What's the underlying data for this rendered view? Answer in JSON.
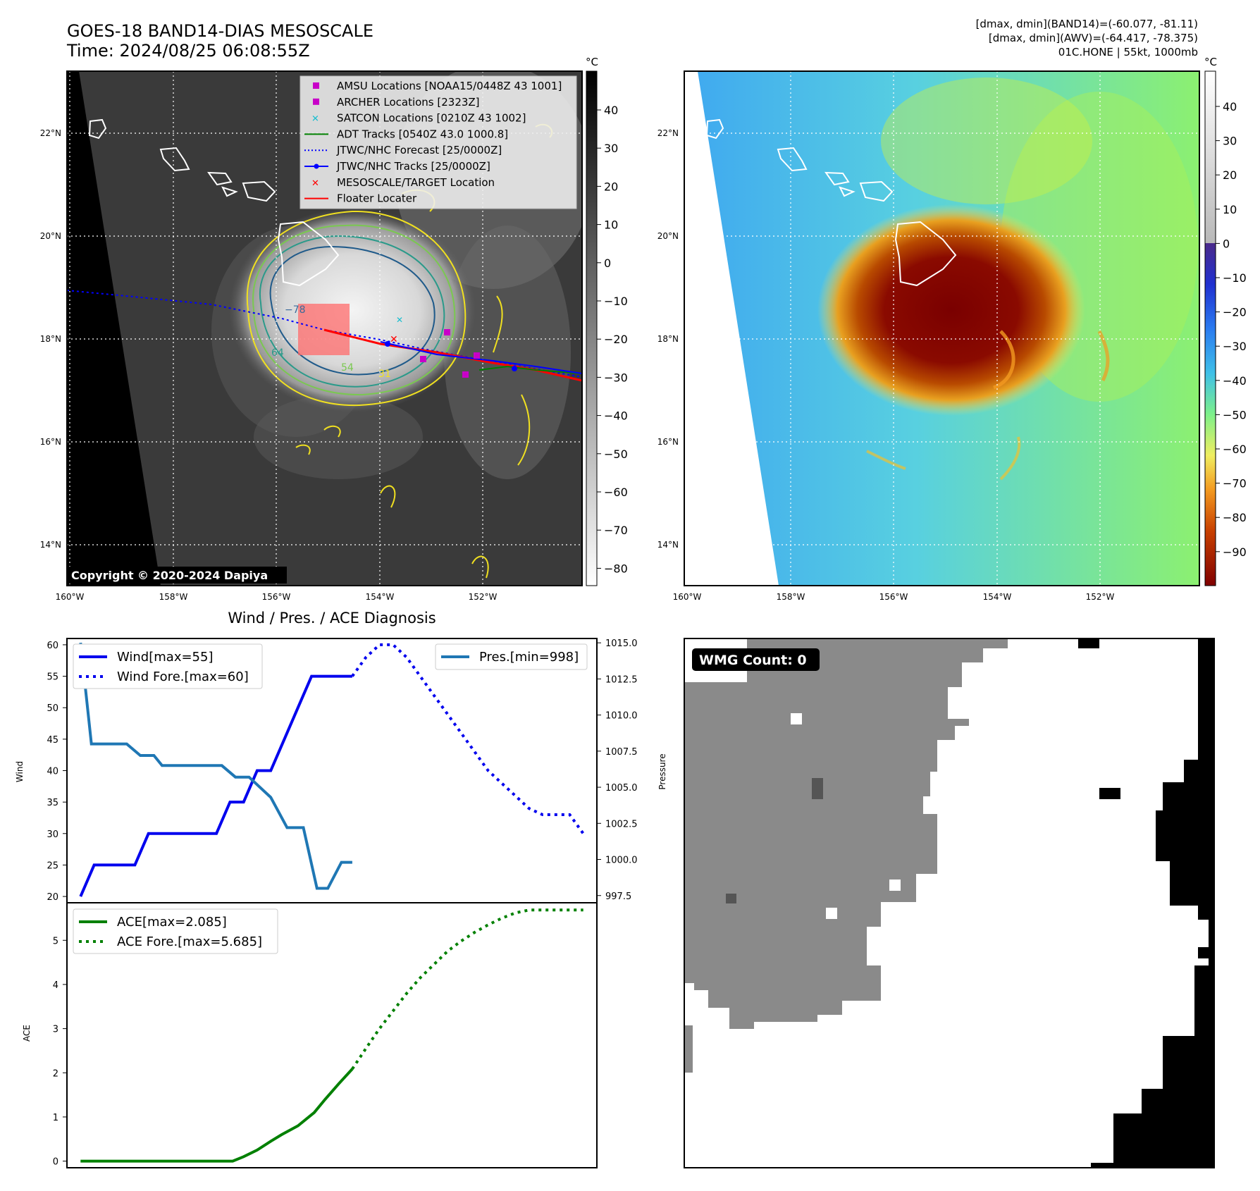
{
  "header": {
    "title_line1": "GOES-18 BAND14-DIAS MESOSCALE",
    "title_line2": "Time: 2024/08/25 06:08:55Z",
    "info_line1": "[dmax, dmin](BAND14)=(-60.077, -81.11)",
    "info_line2": "[dmax, dmin](AWV)=(-64.417, -78.375)",
    "info_line3": "01C.HONE | 55kt, 1000mb"
  },
  "map_axes": {
    "lon_ticks": [
      "160°W",
      "158°W",
      "156°W",
      "154°W",
      "152°W"
    ],
    "lat_ticks": [
      "22°N",
      "20°N",
      "18°N",
      "16°N",
      "14°N"
    ]
  },
  "ir_panel": {
    "copyright": "Copyright © 2020-2024 Dapiya",
    "colorbar_unit": "°C",
    "colorbar_ticks": [
      "40",
      "30",
      "20",
      "10",
      "0",
      "−10",
      "−20",
      "−30",
      "−40",
      "−50",
      "−60",
      "−70",
      "−80"
    ],
    "contour_labels": [
      "−78",
      "64",
      "54",
      "31"
    ],
    "legend": [
      {
        "label": "AMSU Locations [NOAA15/0448Z 43 1001]",
        "color": "#c800c8",
        "marker": "square"
      },
      {
        "label": "ARCHER Locations [2323Z]",
        "color": "#c800c8",
        "marker": "square"
      },
      {
        "label": "SATCON Locations [0210Z 43 1002]",
        "color": "#17becf",
        "marker": "x"
      },
      {
        "label": "ADT Tracks [0540Z 43.0 1000.8]",
        "color": "#008000",
        "marker": "line"
      },
      {
        "label": "JTWC/NHC Forecast [25/0000Z]",
        "color": "#0000ff",
        "marker": "dotted"
      },
      {
        "label": "JTWC/NHC Tracks [25/0000Z]",
        "color": "#0000ff",
        "marker": "line-dot"
      },
      {
        "label": "MESOSCALE/TARGET Location",
        "color": "#ff0000",
        "marker": "x"
      },
      {
        "label": "Floater Locater",
        "color": "#ff0000",
        "marker": "line"
      }
    ]
  },
  "awv_panel": {
    "colorbar_unit": "°C",
    "colorbar_ticks": [
      "40",
      "30",
      "20",
      "10",
      "0",
      "−10",
      "−20",
      "−30",
      "−40",
      "−50",
      "−60",
      "−70",
      "−80",
      "−90"
    ]
  },
  "wmg_panel": {
    "badge": "WMG Count: 0"
  },
  "chart_data": [
    {
      "type": "line",
      "title": "Wind / Pres. / ACE Diagnosis",
      "ylabel": "Wind",
      "ylabel_right": "Pressure",
      "ylim": [
        19,
        61
      ],
      "ylim_right": [
        997,
        1015.3
      ],
      "yticks": [
        20,
        25,
        30,
        35,
        40,
        45,
        50,
        55,
        60
      ],
      "yticks_right": [
        "997.5",
        "1000.0",
        "1002.5",
        "1005.0",
        "1007.5",
        "1010.0",
        "1012.5",
        "1015.0"
      ],
      "legend_left": [
        "Wind[max=55]",
        "Wind Fore.[max=60]"
      ],
      "legend_right": [
        "Pres.[min=998]"
      ],
      "series": [
        {
          "name": "Wind[max=55]",
          "axis": "left",
          "color": "#0000ee",
          "style": "solid",
          "x": [
            0,
            0.5,
            1,
            2,
            2.5,
            3,
            4,
            5,
            5.5,
            6,
            6.5,
            7,
            7.5,
            8,
            8.5,
            9,
            9.5,
            10
          ],
          "values": [
            20,
            25,
            25,
            25,
            30,
            30,
            30,
            30,
            35,
            35,
            40,
            40,
            45,
            50,
            55,
            55,
            55,
            55
          ]
        },
        {
          "name": "Wind Fore.[max=60]",
          "axis": "left",
          "color": "#0000ee",
          "style": "dotted",
          "x": [
            10,
            10.5,
            11,
            11.5,
            12,
            12.5,
            13,
            13.5,
            14,
            14.5,
            15,
            15.5,
            16,
            16.5,
            17,
            17.5,
            18,
            18.5
          ],
          "values": [
            55,
            58,
            60,
            60,
            58,
            55,
            52,
            49,
            46,
            43,
            40,
            38,
            36,
            34,
            33,
            33,
            33,
            30
          ]
        },
        {
          "name": "Pres.[min=998]",
          "axis": "right",
          "color": "#1f77b4",
          "style": "solid",
          "x": [
            0,
            0.4,
            1,
            1.7,
            2.2,
            2.7,
            3,
            4,
            5.2,
            5.7,
            6.2,
            7,
            7.6,
            8.2,
            8.7,
            9.1,
            9.6,
            10
          ],
          "values": [
            1015,
            1008,
            1008,
            1008,
            1007.2,
            1007.2,
            1006.5,
            1006.5,
            1006.5,
            1005.7,
            1005.7,
            1004.3,
            1002.2,
            1002.2,
            998,
            998,
            999.8,
            999.8
          ]
        }
      ]
    },
    {
      "type": "line",
      "ylabel": "ACE",
      "ylim": [
        -0.15,
        5.85
      ],
      "yticks": [
        0,
        1,
        2,
        3,
        4,
        5
      ],
      "legend": [
        "ACE[max=2.085]",
        "ACE Fore.[max=5.685]"
      ],
      "series": [
        {
          "name": "ACE[max=2.085]",
          "color": "#008000",
          "style": "solid",
          "x": [
            0,
            1,
            2,
            3,
            4,
            5,
            5.6,
            6,
            6.5,
            7,
            7.4,
            8,
            8.6,
            9,
            9.5,
            10
          ],
          "values": [
            0,
            0,
            0,
            0,
            0,
            0,
            0,
            0.1,
            0.25,
            0.45,
            0.6,
            0.8,
            1.1,
            1.4,
            1.75,
            2.085
          ]
        },
        {
          "name": "ACE Fore.[max=5.685]",
          "color": "#008000",
          "style": "dotted",
          "x": [
            10,
            10.5,
            11,
            11.5,
            12,
            12.5,
            13,
            13.5,
            14,
            14.5,
            15,
            15.5,
            16,
            16.5,
            17,
            17.5,
            18,
            18.5
          ],
          "values": [
            2.085,
            2.55,
            3.0,
            3.4,
            3.8,
            4.15,
            4.45,
            4.75,
            4.98,
            5.18,
            5.35,
            5.5,
            5.62,
            5.685,
            5.685,
            5.685,
            5.685,
            5.685
          ]
        }
      ]
    }
  ]
}
